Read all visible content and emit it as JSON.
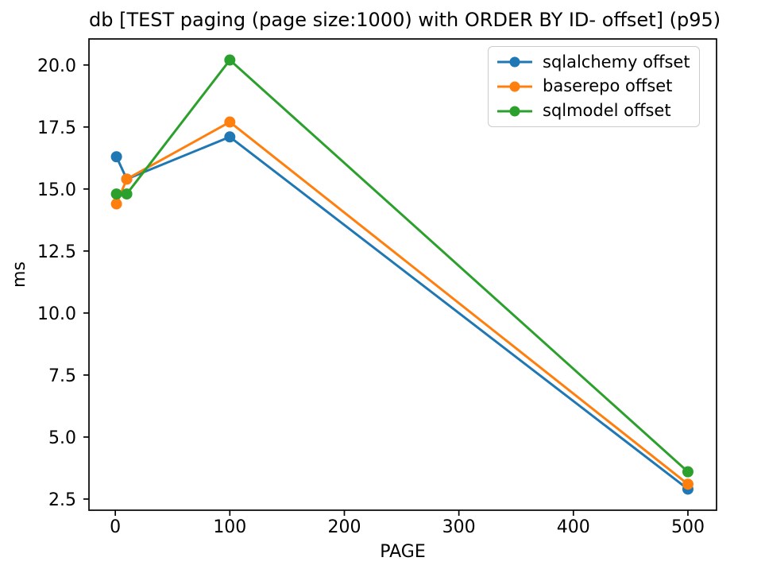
{
  "chart_data": {
    "type": "line",
    "title": "db [TEST paging (page size:1000) with ORDER BY ID- offset] (p95)",
    "xlabel": "PAGE",
    "ylabel": "ms",
    "x": [
      1,
      10,
      100,
      500
    ],
    "series": [
      {
        "name": "sqlalchemy offset",
        "color": "#1f77b4",
        "values": [
          16.3,
          15.4,
          17.1,
          2.9
        ]
      },
      {
        "name": "baserepo offset",
        "color": "#ff7f0e",
        "values": [
          14.4,
          15.4,
          17.7,
          3.1
        ]
      },
      {
        "name": "sqlmodel offset",
        "color": "#2ca02c",
        "values": [
          14.8,
          14.8,
          20.2,
          3.6
        ]
      }
    ],
    "xlim": [
      -23,
      525
    ],
    "ylim": [
      2.05,
      21.05
    ],
    "xticks": [
      0,
      100,
      200,
      300,
      400,
      500
    ],
    "yticks": [
      2.5,
      5.0,
      7.5,
      10.0,
      12.5,
      15.0,
      17.5,
      20.0
    ],
    "xtick_labels": [
      "0",
      "100",
      "200",
      "300",
      "400",
      "500"
    ],
    "ytick_labels": [
      "2.5",
      "5.0",
      "7.5",
      "10.0",
      "12.5",
      "15.0",
      "17.5",
      "20.0"
    ],
    "grid": false,
    "legend_position": "upper right",
    "axis_color": "#000000",
    "legend_border_color": "#cccccc",
    "background_color": "#ffffff",
    "marker": "circle",
    "marker_radius": 7,
    "line_width": 3
  }
}
